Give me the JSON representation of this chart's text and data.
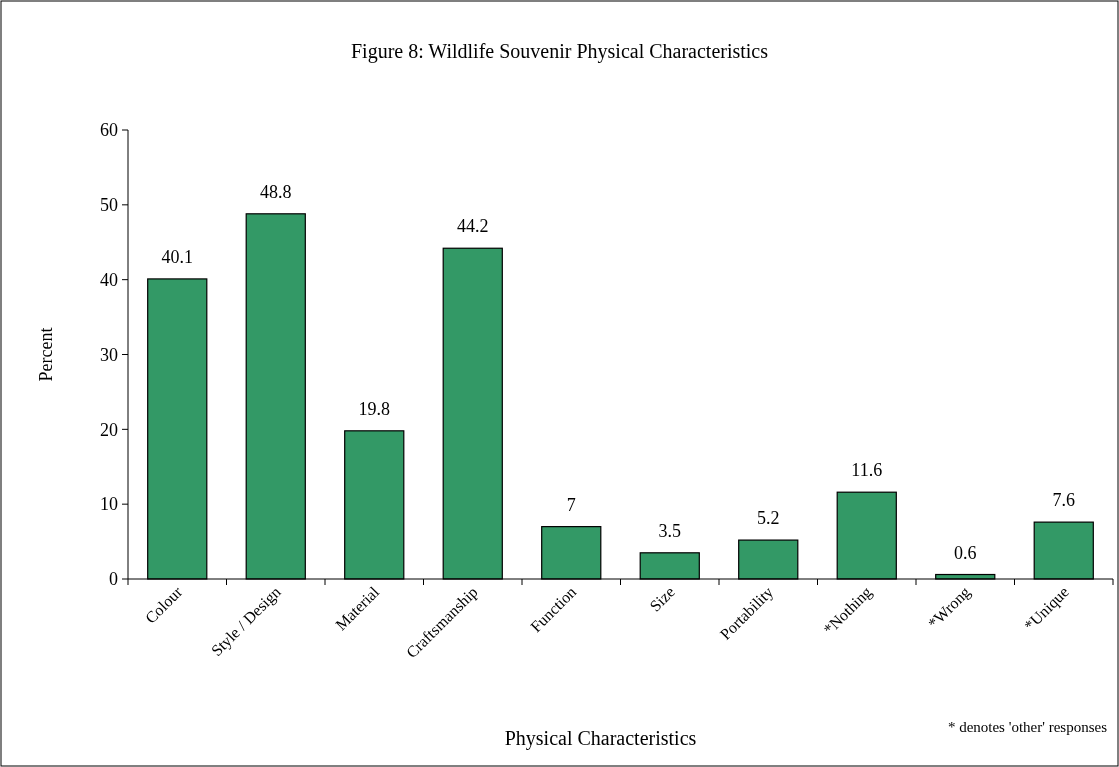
{
  "chart_data": {
    "type": "bar",
    "title": "Figure 8: Wildlife Souvenir Physical Characteristics",
    "xlabel": "Physical Characteristics",
    "ylabel": "Percent",
    "categories": [
      "Colour",
      "Style / Design",
      "Material",
      "Craftsmanship",
      "Function",
      "Size",
      "Portability",
      "*Nothing",
      "*Wrong",
      "*Unique"
    ],
    "values": [
      40.1,
      48.8,
      19.8,
      44.2,
      7,
      3.5,
      5.2,
      11.6,
      0.6,
      7.6
    ],
    "color": "#339966",
    "ylim": [
      0,
      60
    ],
    "yticks": [
      0,
      10,
      20,
      30,
      40,
      50,
      60
    ],
    "grid": false,
    "data_labels": true,
    "annotations": [
      "* denotes 'other' responses"
    ]
  }
}
